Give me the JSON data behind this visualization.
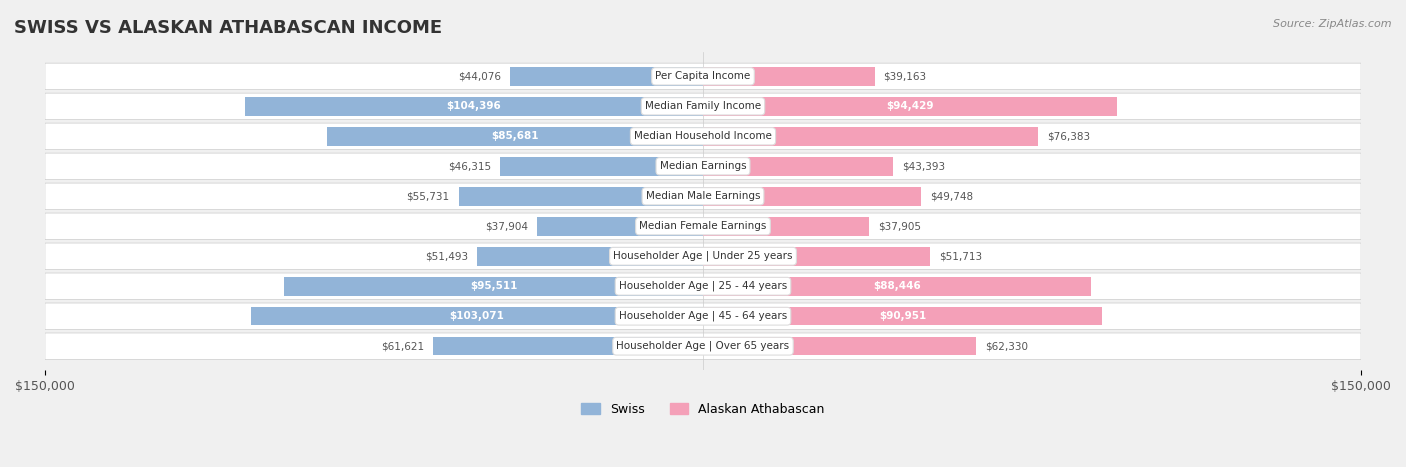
{
  "title": "SWISS VS ALASKAN ATHABASCAN INCOME",
  "source": "Source: ZipAtlas.com",
  "categories": [
    "Per Capita Income",
    "Median Family Income",
    "Median Household Income",
    "Median Earnings",
    "Median Male Earnings",
    "Median Female Earnings",
    "Householder Age | Under 25 years",
    "Householder Age | 25 - 44 years",
    "Householder Age | 45 - 64 years",
    "Householder Age | Over 65 years"
  ],
  "swiss_values": [
    44076,
    104396,
    85681,
    46315,
    55731,
    37904,
    51493,
    95511,
    103071,
    61621
  ],
  "alaskan_values": [
    39163,
    94429,
    76383,
    43393,
    49748,
    37905,
    51713,
    88446,
    90951,
    62330
  ],
  "swiss_labels": [
    "$44,076",
    "$104,396",
    "$85,681",
    "$46,315",
    "$55,731",
    "$37,904",
    "$51,493",
    "$95,511",
    "$103,071",
    "$61,621"
  ],
  "alaskan_labels": [
    "$39,163",
    "$94,429",
    "$76,383",
    "$43,393",
    "$49,748",
    "$37,905",
    "$51,713",
    "$88,446",
    "$90,951",
    "$62,330"
  ],
  "max_value": 150000,
  "swiss_color": "#92b4d8",
  "swiss_color_dark": "#5a8fc0",
  "alaskan_color": "#f4a0b8",
  "alaskan_color_dark": "#e06090",
  "swiss_text_white_threshold": 80000,
  "alaskan_text_white_threshold": 80000,
  "background_color": "#f0f0f0",
  "row_bg_color": "#ffffff",
  "row_alt_bg_color": "#f5f5f5",
  "legend_swiss": "Swiss",
  "legend_alaskan": "Alaskan Athabascan",
  "figsize": [
    14.06,
    4.67
  ],
  "dpi": 100
}
